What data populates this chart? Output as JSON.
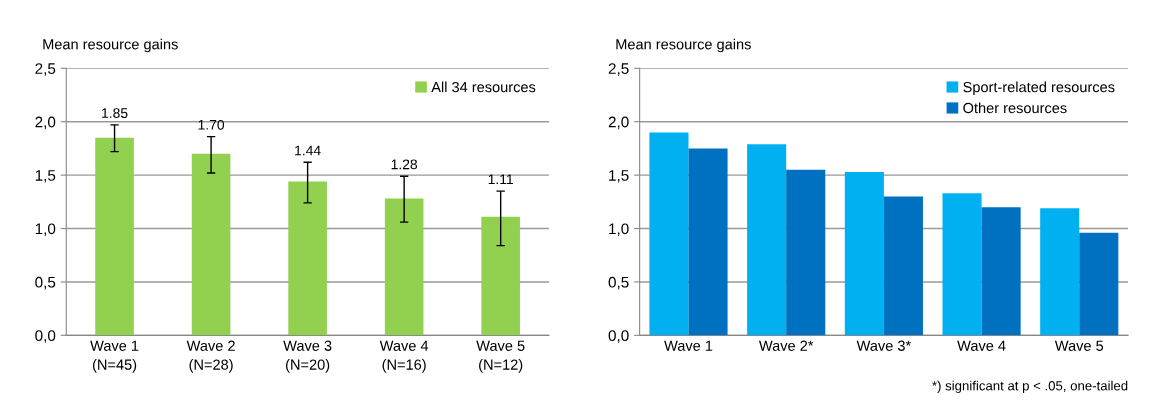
{
  "chart_data": [
    {
      "type": "bar",
      "ylabel": "Mean resource gains",
      "categories": [
        "Wave 1\n(N=45)",
        "Wave 2\n(N=28)",
        "Wave 3\n(N=20)",
        "Wave 4\n(N=16)",
        "Wave 5\n(N=12)"
      ],
      "series": [
        {
          "name": "All 34 resources",
          "color": "#92d050",
          "values": [
            1.85,
            1.7,
            1.44,
            1.28,
            1.11
          ],
          "errors": [
            [
              1.72,
              1.97
            ],
            [
              1.52,
              1.86
            ],
            [
              1.24,
              1.62
            ],
            [
              1.06,
              1.49
            ],
            [
              0.84,
              1.35
            ]
          ]
        }
      ],
      "value_labels": [
        "1.85",
        "1.70",
        "1.44",
        "1.28",
        "1.11"
      ],
      "ylim": [
        0,
        2.5
      ],
      "yticks": [
        {
          "value": 0,
          "label": "0,0"
        },
        {
          "value": 0.5,
          "label": "0,5"
        },
        {
          "value": 1.0,
          "label": "1,0"
        },
        {
          "value": 1.5,
          "label": "1,5"
        },
        {
          "value": 2.0,
          "label": "2,0"
        },
        {
          "value": 2.5,
          "label": "2,5"
        }
      ],
      "grid": "y",
      "legend": "top right"
    },
    {
      "type": "bar",
      "ylabel": "Mean resource gains",
      "categories": [
        "Wave 1",
        "Wave 2*",
        "Wave 3*",
        "Wave 4",
        "Wave 5"
      ],
      "series": [
        {
          "name": "Sport-related resources",
          "color": "#00b0f0",
          "values": [
            1.9,
            1.79,
            1.53,
            1.33,
            1.19
          ]
        },
        {
          "name": "Other resources",
          "color": "#0070c0",
          "values": [
            1.75,
            1.55,
            1.3,
            1.2,
            0.96
          ]
        }
      ],
      "ylim": [
        0,
        2.5
      ],
      "yticks": [
        {
          "value": 0,
          "label": "0,0"
        },
        {
          "value": 0.5,
          "label": "0,5"
        },
        {
          "value": 1.0,
          "label": "1,0"
        },
        {
          "value": 1.5,
          "label": "1,5"
        },
        {
          "value": 2.0,
          "label": "2,0"
        },
        {
          "value": 2.5,
          "label": "2,5"
        }
      ],
      "grid": "y",
      "legend": "top right",
      "annotations": [
        "*) significant at p < .05, one-tailed"
      ]
    }
  ]
}
